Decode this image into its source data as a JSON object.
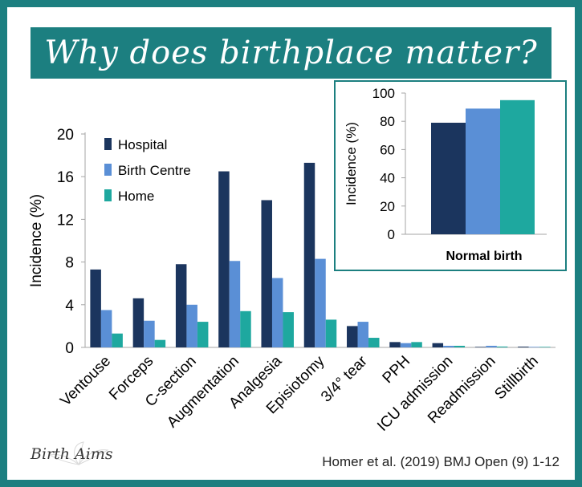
{
  "banner": {
    "title": "Why does birthplace matter?"
  },
  "colors": {
    "frame": "#1c7f80",
    "hospital": "#1b355e",
    "birth_centre": "#5a8fd6",
    "home": "#1ea89f"
  },
  "chart_data": [
    {
      "type": "bar",
      "ylabel": "Incidence (%)",
      "ylim": [
        0,
        20
      ],
      "yticks": [
        0,
        4,
        8,
        12,
        16,
        20
      ],
      "categories": [
        "Ventouse",
        "Forceps",
        "C-section",
        "Augmentation",
        "Analgesia",
        "Episiotomy",
        "3/4° tear",
        "PPH",
        "ICU admission",
        "Readmission",
        "Stillbirth"
      ],
      "series": [
        {
          "name": "Hospital",
          "color": "#1b355e",
          "values": [
            7.3,
            4.6,
            7.8,
            16.5,
            13.8,
            17.3,
            2.0,
            0.5,
            0.4,
            0.05,
            0.07
          ]
        },
        {
          "name": "Birth Centre",
          "color": "#5a8fd6",
          "values": [
            3.5,
            2.5,
            4.0,
            8.1,
            6.5,
            8.3,
            2.4,
            0.4,
            0.15,
            0.15,
            0.05
          ]
        },
        {
          "name": "Home",
          "color": "#1ea89f",
          "values": [
            1.3,
            0.7,
            2.4,
            3.4,
            3.3,
            2.6,
            0.9,
            0.5,
            0.15,
            0.08,
            0.05
          ]
        }
      ],
      "legend": "top-left",
      "grid": false
    },
    {
      "type": "bar",
      "ylabel": "Incidence (%)",
      "xlabel": "Normal birth",
      "ylim": [
        0,
        100
      ],
      "yticks": [
        0,
        20,
        40,
        60,
        80,
        100
      ],
      "series": [
        {
          "name": "Hospital",
          "color": "#1b355e",
          "values": [
            79
          ]
        },
        {
          "name": "Birth Centre",
          "color": "#5a8fd6",
          "values": [
            89
          ]
        },
        {
          "name": "Home",
          "color": "#1ea89f",
          "values": [
            95
          ]
        }
      ],
      "grid": false
    }
  ],
  "logo": {
    "text": "Birth Aims"
  },
  "citation": "Homer et al. (2019) BMJ Open (9) 1-12"
}
